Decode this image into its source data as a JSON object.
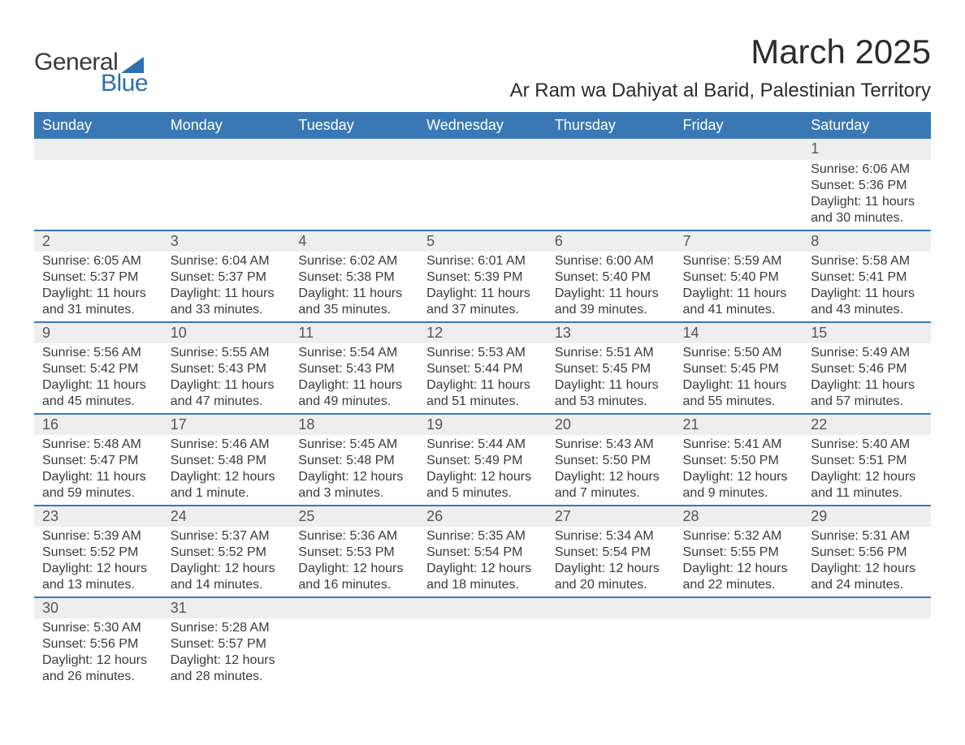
{
  "logo": {
    "text1": "General",
    "text2": "Blue"
  },
  "title": "March 2025",
  "location": "Ar Ram wa Dahiyat al Barid, Palestinian Territory",
  "colors": {
    "header_bg": "#3a78b5",
    "header_text": "#ffffff",
    "row_alt_bg": "#eeeeee",
    "border": "#3a78b5",
    "text": "#3a3a3a",
    "logo_blue": "#2c6fb0"
  },
  "daysOfWeek": [
    "Sunday",
    "Monday",
    "Tuesday",
    "Wednesday",
    "Thursday",
    "Friday",
    "Saturday"
  ],
  "weeks": [
    [
      null,
      null,
      null,
      null,
      null,
      null,
      {
        "n": "1",
        "sr": "Sunrise: 6:06 AM",
        "ss": "Sunset: 5:36 PM",
        "dl": "Daylight: 11 hours and 30 minutes."
      }
    ],
    [
      {
        "n": "2",
        "sr": "Sunrise: 6:05 AM",
        "ss": "Sunset: 5:37 PM",
        "dl": "Daylight: 11 hours and 31 minutes."
      },
      {
        "n": "3",
        "sr": "Sunrise: 6:04 AM",
        "ss": "Sunset: 5:37 PM",
        "dl": "Daylight: 11 hours and 33 minutes."
      },
      {
        "n": "4",
        "sr": "Sunrise: 6:02 AM",
        "ss": "Sunset: 5:38 PM",
        "dl": "Daylight: 11 hours and 35 minutes."
      },
      {
        "n": "5",
        "sr": "Sunrise: 6:01 AM",
        "ss": "Sunset: 5:39 PM",
        "dl": "Daylight: 11 hours and 37 minutes."
      },
      {
        "n": "6",
        "sr": "Sunrise: 6:00 AM",
        "ss": "Sunset: 5:40 PM",
        "dl": "Daylight: 11 hours and 39 minutes."
      },
      {
        "n": "7",
        "sr": "Sunrise: 5:59 AM",
        "ss": "Sunset: 5:40 PM",
        "dl": "Daylight: 11 hours and 41 minutes."
      },
      {
        "n": "8",
        "sr": "Sunrise: 5:58 AM",
        "ss": "Sunset: 5:41 PM",
        "dl": "Daylight: 11 hours and 43 minutes."
      }
    ],
    [
      {
        "n": "9",
        "sr": "Sunrise: 5:56 AM",
        "ss": "Sunset: 5:42 PM",
        "dl": "Daylight: 11 hours and 45 minutes."
      },
      {
        "n": "10",
        "sr": "Sunrise: 5:55 AM",
        "ss": "Sunset: 5:43 PM",
        "dl": "Daylight: 11 hours and 47 minutes."
      },
      {
        "n": "11",
        "sr": "Sunrise: 5:54 AM",
        "ss": "Sunset: 5:43 PM",
        "dl": "Daylight: 11 hours and 49 minutes."
      },
      {
        "n": "12",
        "sr": "Sunrise: 5:53 AM",
        "ss": "Sunset: 5:44 PM",
        "dl": "Daylight: 11 hours and 51 minutes."
      },
      {
        "n": "13",
        "sr": "Sunrise: 5:51 AM",
        "ss": "Sunset: 5:45 PM",
        "dl": "Daylight: 11 hours and 53 minutes."
      },
      {
        "n": "14",
        "sr": "Sunrise: 5:50 AM",
        "ss": "Sunset: 5:45 PM",
        "dl": "Daylight: 11 hours and 55 minutes."
      },
      {
        "n": "15",
        "sr": "Sunrise: 5:49 AM",
        "ss": "Sunset: 5:46 PM",
        "dl": "Daylight: 11 hours and 57 minutes."
      }
    ],
    [
      {
        "n": "16",
        "sr": "Sunrise: 5:48 AM",
        "ss": "Sunset: 5:47 PM",
        "dl": "Daylight: 11 hours and 59 minutes."
      },
      {
        "n": "17",
        "sr": "Sunrise: 5:46 AM",
        "ss": "Sunset: 5:48 PM",
        "dl": "Daylight: 12 hours and 1 minute."
      },
      {
        "n": "18",
        "sr": "Sunrise: 5:45 AM",
        "ss": "Sunset: 5:48 PM",
        "dl": "Daylight: 12 hours and 3 minutes."
      },
      {
        "n": "19",
        "sr": "Sunrise: 5:44 AM",
        "ss": "Sunset: 5:49 PM",
        "dl": "Daylight: 12 hours and 5 minutes."
      },
      {
        "n": "20",
        "sr": "Sunrise: 5:43 AM",
        "ss": "Sunset: 5:50 PM",
        "dl": "Daylight: 12 hours and 7 minutes."
      },
      {
        "n": "21",
        "sr": "Sunrise: 5:41 AM",
        "ss": "Sunset: 5:50 PM",
        "dl": "Daylight: 12 hours and 9 minutes."
      },
      {
        "n": "22",
        "sr": "Sunrise: 5:40 AM",
        "ss": "Sunset: 5:51 PM",
        "dl": "Daylight: 12 hours and 11 minutes."
      }
    ],
    [
      {
        "n": "23",
        "sr": "Sunrise: 5:39 AM",
        "ss": "Sunset: 5:52 PM",
        "dl": "Daylight: 12 hours and 13 minutes."
      },
      {
        "n": "24",
        "sr": "Sunrise: 5:37 AM",
        "ss": "Sunset: 5:52 PM",
        "dl": "Daylight: 12 hours and 14 minutes."
      },
      {
        "n": "25",
        "sr": "Sunrise: 5:36 AM",
        "ss": "Sunset: 5:53 PM",
        "dl": "Daylight: 12 hours and 16 minutes."
      },
      {
        "n": "26",
        "sr": "Sunrise: 5:35 AM",
        "ss": "Sunset: 5:54 PM",
        "dl": "Daylight: 12 hours and 18 minutes."
      },
      {
        "n": "27",
        "sr": "Sunrise: 5:34 AM",
        "ss": "Sunset: 5:54 PM",
        "dl": "Daylight: 12 hours and 20 minutes."
      },
      {
        "n": "28",
        "sr": "Sunrise: 5:32 AM",
        "ss": "Sunset: 5:55 PM",
        "dl": "Daylight: 12 hours and 22 minutes."
      },
      {
        "n": "29",
        "sr": "Sunrise: 5:31 AM",
        "ss": "Sunset: 5:56 PM",
        "dl": "Daylight: 12 hours and 24 minutes."
      }
    ],
    [
      {
        "n": "30",
        "sr": "Sunrise: 5:30 AM",
        "ss": "Sunset: 5:56 PM",
        "dl": "Daylight: 12 hours and 26 minutes."
      },
      {
        "n": "31",
        "sr": "Sunrise: 5:28 AM",
        "ss": "Sunset: 5:57 PM",
        "dl": "Daylight: 12 hours and 28 minutes."
      },
      null,
      null,
      null,
      null,
      null
    ]
  ]
}
